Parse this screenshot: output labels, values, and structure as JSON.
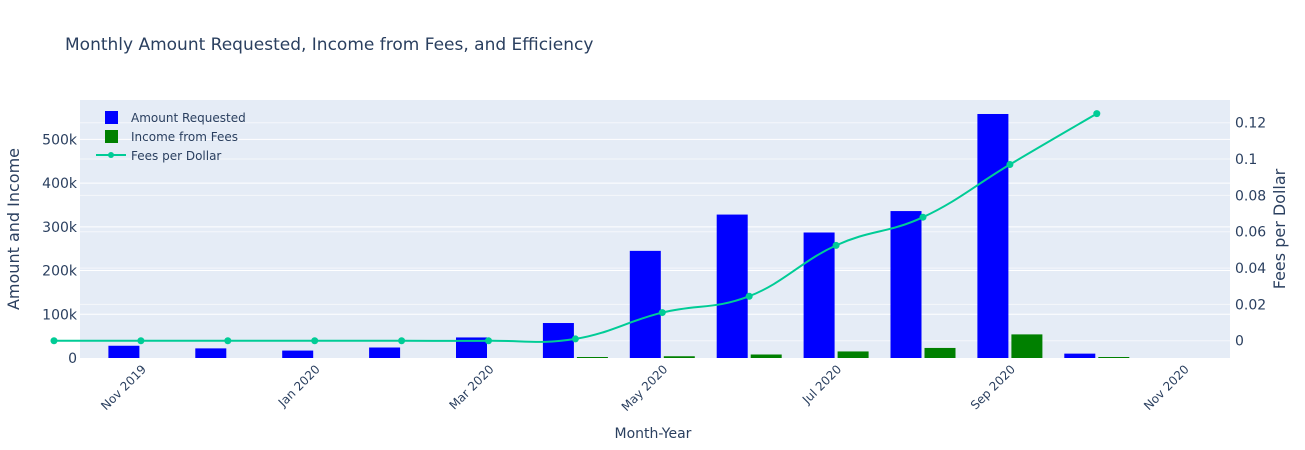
{
  "chart_data": {
    "type": "bar",
    "title": "Monthly Amount Requested, Income from Fees, and Efficiency",
    "xlabel": "Month-Year",
    "ylabel": "Amount and Income",
    "y2label": "Fees per Dollar",
    "x_tick_labels": [
      "Nov 2019",
      "Jan 2020",
      "Mar 2020",
      "May 2020",
      "Jul 2020",
      "Sep 2020",
      "Nov 2020"
    ],
    "months": [
      "2019-10",
      "2019-11",
      "2019-12",
      "2020-01",
      "2020-02",
      "2020-03",
      "2020-04",
      "2020-05",
      "2020-06",
      "2020-07",
      "2020-08",
      "2020-09",
      "2020-10",
      "2020-11"
    ],
    "ylim": [
      0,
      590000
    ],
    "y2lim": [
      -0.0095,
      0.1325
    ],
    "y_ticks": [
      0,
      100000,
      200000,
      300000,
      400000,
      500000
    ],
    "y_tick_labels": [
      "0",
      "100k",
      "200k",
      "300k",
      "400k",
      "500k"
    ],
    "y2_ticks": [
      0,
      0.02,
      0.04,
      0.06,
      0.08,
      0.1,
      0.12
    ],
    "y2_tick_labels": [
      "0",
      "0.02",
      "0.04",
      "0.06",
      "0.08",
      "0.1",
      "0.12"
    ],
    "grid": true,
    "legend_position": "top-left",
    "series": [
      {
        "name": "Amount Requested",
        "type": "bar",
        "axis": "y",
        "color": "#0000ff",
        "values": [
          0,
          28000,
          22000,
          17000,
          24000,
          47000,
          80000,
          245000,
          328000,
          287000,
          336000,
          558000,
          10000,
          0
        ]
      },
      {
        "name": "Income from Fees",
        "type": "bar",
        "axis": "y",
        "color": "#008000",
        "values": [
          0,
          0,
          0,
          0,
          0,
          0,
          1000,
          4000,
          8000,
          15000,
          23000,
          54000,
          1500,
          0
        ]
      },
      {
        "name": "Fees per Dollar",
        "type": "line",
        "axis": "y2",
        "color": "#00cc96",
        "values": [
          0,
          0,
          0,
          0,
          0,
          0,
          0.001,
          0.0155,
          0.0245,
          0.0525,
          0.068,
          0.097,
          0.125,
          null
        ]
      }
    ]
  }
}
